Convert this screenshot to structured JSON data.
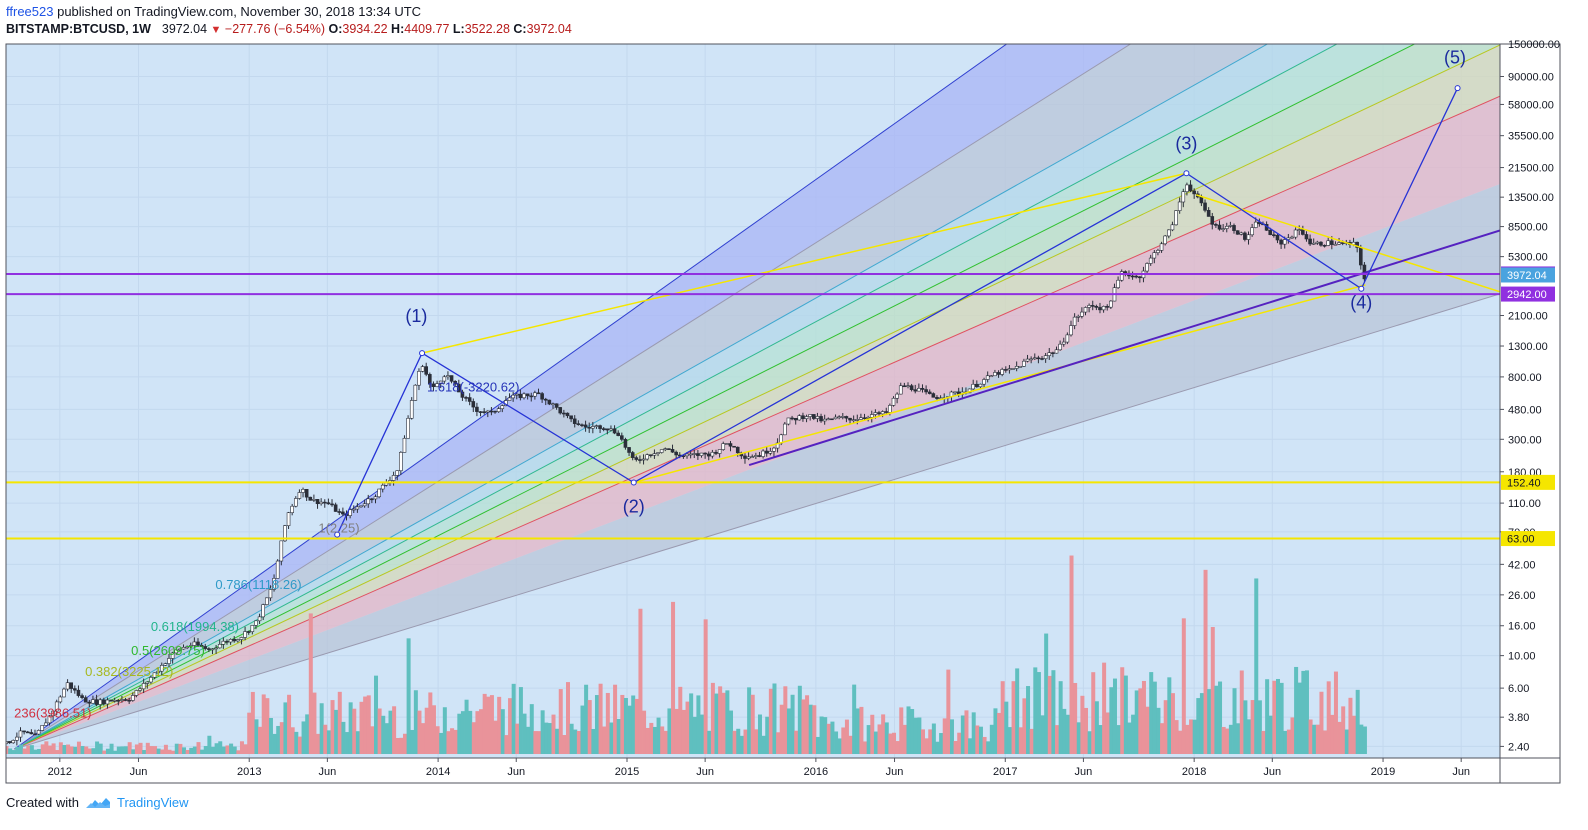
{
  "header": {
    "author": "ffree523",
    "published": "published on TradingView.com, November 30, 2018 13:34 UTC",
    "symbol": "BITSTAMP:BTCUSD, 1W",
    "last": "3972.04",
    "change": "−277.76 (−6.54%)",
    "open_key": "O:",
    "open": "3934.22",
    "high_key": "H:",
    "high": "4409.77",
    "low_key": "L:",
    "low": "3522.28",
    "close_key": "C:",
    "close": "3972.04"
  },
  "footer": {
    "created_with": "Created with",
    "brand": "TradingView"
  },
  "colors": {
    "plot_bg": "#d0e4f7",
    "up_volume": "#5fbfbf",
    "down_volume": "#e9939a",
    "wave": "#2633d6",
    "wave_label": "#1a2a9e",
    "yellow": "#f5e600",
    "purple": "#9030e0"
  },
  "chart_data": {
    "type": "candlestick",
    "scale": "log",
    "ylim": [
      2.0,
      150000
    ],
    "xlim": [
      "2011-09-19",
      "2019-08-15"
    ],
    "x_ticks": [
      {
        "date": "2012-01-01",
        "label": "2012"
      },
      {
        "date": "2012-06-01",
        "label": "Jun"
      },
      {
        "date": "2013-01-01",
        "label": "2013"
      },
      {
        "date": "2013-06-01",
        "label": "Jun"
      },
      {
        "date": "2014-01-01",
        "label": "2014"
      },
      {
        "date": "2014-06-01",
        "label": "Jun"
      },
      {
        "date": "2015-01-01",
        "label": "2015"
      },
      {
        "date": "2015-06-01",
        "label": "Jun"
      },
      {
        "date": "2016-01-01",
        "label": "2016"
      },
      {
        "date": "2016-06-01",
        "label": "Jun"
      },
      {
        "date": "2017-01-01",
        "label": "2017"
      },
      {
        "date": "2017-06-01",
        "label": "Jun"
      },
      {
        "date": "2018-01-01",
        "label": "2018"
      },
      {
        "date": "2018-06-01",
        "label": "Jun"
      },
      {
        "date": "2019-01-01",
        "label": "2019"
      },
      {
        "date": "2019-06-01",
        "label": "Jun"
      }
    ],
    "y_ticks": [
      {
        "v": 150000,
        "label": "150000.00"
      },
      {
        "v": 90000,
        "label": "90000.00"
      },
      {
        "v": 58000,
        "label": "58000.00"
      },
      {
        "v": 35500,
        "label": "35500.00"
      },
      {
        "v": 21500,
        "label": "21500.00"
      },
      {
        "v": 13500,
        "label": "13500.00"
      },
      {
        "v": 8500,
        "label": "8500.00"
      },
      {
        "v": 5300,
        "label": "5300.00"
      },
      {
        "v": 2100,
        "label": "2100.00"
      },
      {
        "v": 1300,
        "label": "1300.00"
      },
      {
        "v": 800,
        "label": "800.00"
      },
      {
        "v": 480,
        "label": "480.00"
      },
      {
        "v": 300,
        "label": "300.00"
      },
      {
        "v": 180,
        "label": "180.00"
      },
      {
        "v": 110,
        "label": "110.00"
      },
      {
        "v": 70,
        "label": "70.00"
      },
      {
        "v": 42,
        "label": "42.00"
      },
      {
        "v": 26,
        "label": "26.00"
      },
      {
        "v": 16,
        "label": "16.00"
      },
      {
        "v": 10,
        "label": "10.00"
      },
      {
        "v": 6,
        "label": "6.00"
      },
      {
        "v": 3.8,
        "label": "3.80"
      },
      {
        "v": 2.4,
        "label": "2.40"
      }
    ],
    "price_labels": [
      {
        "v": 4036.58,
        "label": "4036.58",
        "bg": "#9030e0",
        "fg": "#ffffff"
      },
      {
        "v": 3972.04,
        "label": "3972.04",
        "bg": "#4aa3df",
        "fg": "#ffffff"
      },
      {
        "v": 2942.0,
        "label": "2942.00",
        "bg": "#9030e0",
        "fg": "#ffffff"
      },
      {
        "v": 152.4,
        "label": "152.40",
        "bg": "#f5e600",
        "fg": "#131722"
      },
      {
        "v": 63.0,
        "label": "63.00",
        "bg": "#f5e600",
        "fg": "#131722"
      }
    ],
    "horizontal_lines": [
      {
        "v": 4036.58,
        "color": "#9030e0"
      },
      {
        "v": 2942.0,
        "color": "#9030e0"
      },
      {
        "v": 152.4,
        "color": "#f5e600"
      },
      {
        "v": 63.0,
        "color": "#f5e600"
      }
    ],
    "price_path": [
      [
        "2011-09-19",
        2.5
      ],
      [
        "2011-10-20",
        3.0
      ],
      [
        "2011-11-15",
        2.8
      ],
      [
        "2011-12-15",
        4.0
      ],
      [
        "2012-01-15",
        6.5
      ],
      [
        "2012-02-15",
        5.0
      ],
      [
        "2012-03-15",
        4.8
      ],
      [
        "2012-04-15",
        5.0
      ],
      [
        "2012-05-15",
        5.1
      ],
      [
        "2012-06-15",
        6.5
      ],
      [
        "2012-07-15",
        8.5
      ],
      [
        "2012-08-15",
        11.0
      ],
      [
        "2012-09-15",
        12.0
      ],
      [
        "2012-10-15",
        11.0
      ],
      [
        "2012-11-15",
        12.5
      ],
      [
        "2012-12-15",
        13.4
      ],
      [
        "2013-01-15",
        17.0
      ],
      [
        "2013-02-15",
        30.0
      ],
      [
        "2013-03-15",
        90.0
      ],
      [
        "2013-04-10",
        140.0
      ],
      [
        "2013-05-01",
        115.0
      ],
      [
        "2013-06-01",
        110.0
      ],
      [
        "2013-07-01",
        90.0
      ],
      [
        "2013-08-01",
        105.0
      ],
      [
        "2013-09-01",
        125.0
      ],
      [
        "2013-10-15",
        185.0
      ],
      [
        "2013-11-15",
        650.0
      ],
      [
        "2013-12-01",
        1000.0
      ],
      [
        "2013-12-20",
        650.0
      ],
      [
        "2014-01-15",
        850.0
      ],
      [
        "2014-02-15",
        600.0
      ],
      [
        "2014-03-15",
        480.0
      ],
      [
        "2014-04-15",
        450.0
      ],
      [
        "2014-05-15",
        570.0
      ],
      [
        "2014-06-15",
        600.0
      ],
      [
        "2014-07-15",
        610.0
      ],
      [
        "2014-08-15",
        500.0
      ],
      [
        "2014-09-15",
        400.0
      ],
      [
        "2014-10-15",
        360.0
      ],
      [
        "2014-11-15",
        370.0
      ],
      [
        "2014-12-15",
        330.0
      ],
      [
        "2015-01-14",
        210.0
      ],
      [
        "2015-02-15",
        240.0
      ],
      [
        "2015-03-15",
        260.0
      ],
      [
        "2015-04-15",
        230.0
      ],
      [
        "2015-05-15",
        235.0
      ],
      [
        "2015-06-15",
        240.0
      ],
      [
        "2015-07-15",
        285.0
      ],
      [
        "2015-08-15",
        230.0
      ],
      [
        "2015-09-15",
        235.0
      ],
      [
        "2015-10-15",
        270.0
      ],
      [
        "2015-11-05",
        400.0
      ],
      [
        "2015-12-15",
        440.0
      ],
      [
        "2016-01-15",
        400.0
      ],
      [
        "2016-02-15",
        420.0
      ],
      [
        "2016-03-15",
        415.0
      ],
      [
        "2016-04-15",
        440.0
      ],
      [
        "2016-05-15",
        450.0
      ],
      [
        "2016-06-15",
        700.0
      ],
      [
        "2016-07-15",
        660.0
      ],
      [
        "2016-08-15",
        580.0
      ],
      [
        "2016-09-15",
        605.0
      ],
      [
        "2016-10-15",
        640.0
      ],
      [
        "2016-11-15",
        740.0
      ],
      [
        "2016-12-15",
        850.0
      ],
      [
        "2017-01-15",
        900.0
      ],
      [
        "2017-02-15",
        1050.0
      ],
      [
        "2017-03-15",
        1100.0
      ],
      [
        "2017-04-15",
        1250.0
      ],
      [
        "2017-05-15",
        2000.0
      ],
      [
        "2017-06-15",
        2500.0
      ],
      [
        "2017-07-15",
        2300.0
      ],
      [
        "2017-08-15",
        4200.0
      ],
      [
        "2017-09-15",
        3800.0
      ],
      [
        "2017-10-15",
        5500.0
      ],
      [
        "2017-11-15",
        8000.0
      ],
      [
        "2017-12-17",
        17000.0
      ],
      [
        "2018-01-15",
        12000.0
      ],
      [
        "2018-02-10",
        8500.0
      ],
      [
        "2018-03-15",
        8500.0
      ],
      [
        "2018-04-10",
        7000.0
      ],
      [
        "2018-05-05",
        9300.0
      ],
      [
        "2018-06-15",
        6500.0
      ],
      [
        "2018-07-25",
        8200.0
      ],
      [
        "2018-08-15",
        6400.0
      ],
      [
        "2018-09-15",
        6600.0
      ],
      [
        "2018-10-15",
        6500.0
      ],
      [
        "2018-11-10",
        6400.0
      ],
      [
        "2018-11-25",
        3800.0
      ],
      [
        "2018-11-30",
        3972.04
      ]
    ],
    "wave_points": [
      {
        "date": "2013-06-20",
        "v": 67
      },
      {
        "date": "2013-12-01",
        "v": 1163
      },
      {
        "date": "2015-01-14",
        "v": 152
      },
      {
        "date": "2017-12-17",
        "v": 19666
      },
      {
        "date": "2018-11-20",
        "v": 3200
      },
      {
        "date": "2019-05-25",
        "v": 75000
      }
    ],
    "wave_labels": [
      {
        "date": "2013-11-20",
        "v": 1900,
        "label": "(1)"
      },
      {
        "date": "2015-01-14",
        "v": 95,
        "label": "(2)"
      },
      {
        "date": "2017-12-17",
        "v": 28500,
        "label": "(3)"
      },
      {
        "date": "2018-11-20",
        "v": 2350,
        "label": "(4)"
      },
      {
        "date": "2019-05-20",
        "v": 110000,
        "label": "(5)"
      }
    ],
    "channel": {
      "base": {
        "date": "2011-10-05",
        "v": 2.3
      },
      "end": {
        "date": "2019-08-15",
        "v": 2950
      },
      "bands": [
        {
          "offset": 0.75,
          "color": "#b9c6d8"
        },
        {
          "offset": 1.35,
          "color": "#e4b6c6"
        },
        {
          "offset": 1.7,
          "color": "#d6d8b8"
        },
        {
          "offset": 2.0,
          "color": "#bde0c4"
        },
        {
          "offset": 2.3,
          "color": "#b5e2d4"
        },
        {
          "offset": 2.6,
          "color": "#b4d8ea"
        },
        {
          "offset": 3.3,
          "color": "#b9c6d8"
        },
        {
          "offset": 4.1,
          "color": "#aab6f5"
        }
      ],
      "lines": [
        {
          "offset": 1.35,
          "color": "#e05060"
        },
        {
          "offset": 1.7,
          "color": "#b8c820"
        },
        {
          "offset": 2.0,
          "color": "#30c030"
        },
        {
          "offset": 2.3,
          "color": "#30b890"
        },
        {
          "offset": 2.6,
          "color": "#40a8d0"
        },
        {
          "offset": 3.3,
          "color": "#9a9ab0"
        },
        {
          "offset": 4.1,
          "color": "#3040d0"
        }
      ]
    },
    "fib_labels": [
      {
        "label": "1.618(-3220.62)",
        "color": "#2633b8",
        "date": "2014-06-15",
        "offset": 4.1
      },
      {
        "label": "1(2.25)",
        "color": "#808080",
        "date": "2013-08-10",
        "offset": 3.3
      },
      {
        "label": "0.786(1118.26)",
        "color": "#2f9ac8",
        "date": "2013-04-20",
        "offset": 2.6
      },
      {
        "label": "0.618(1994.38)",
        "color": "#22b48c",
        "date": "2012-12-20",
        "offset": 2.3
      },
      {
        "label": "0.5(2609.75)",
        "color": "#2eb82e",
        "date": "2012-10-15",
        "offset": 2.0
      },
      {
        "label": "0.382(3225.12)",
        "color": "#a6b81f",
        "date": "2012-08-15",
        "offset": 1.7
      },
      {
        "label": "236(3986.51)",
        "color": "#d03040",
        "date": "2012-03-10",
        "offset": 1.35
      }
    ],
    "trend_lines": [
      {
        "from": {
          "date": "2013-12-01",
          "v": 1163
        },
        "to": {
          "date": "2017-12-17",
          "v": 19666
        },
        "color": "#f5e600",
        "width": 1.5
      },
      {
        "from": {
          "date": "2015-01-14",
          "v": 152
        },
        "to": {
          "date": "2018-11-28",
          "v": 3400
        },
        "color": "#f5e600",
        "width": 1.5
      },
      {
        "from": {
          "date": "2018-01-05",
          "v": 14000
        },
        "to": {
          "date": "2019-08-15",
          "v": 3050
        },
        "color": "#f5e600",
        "width": 1.5
      },
      {
        "from": {
          "date": "2015-08-25",
          "v": 200
        },
        "to": {
          "date": "2019-08-15",
          "v": 8000
        },
        "color": "#5522c0",
        "width": 2
      }
    ]
  }
}
